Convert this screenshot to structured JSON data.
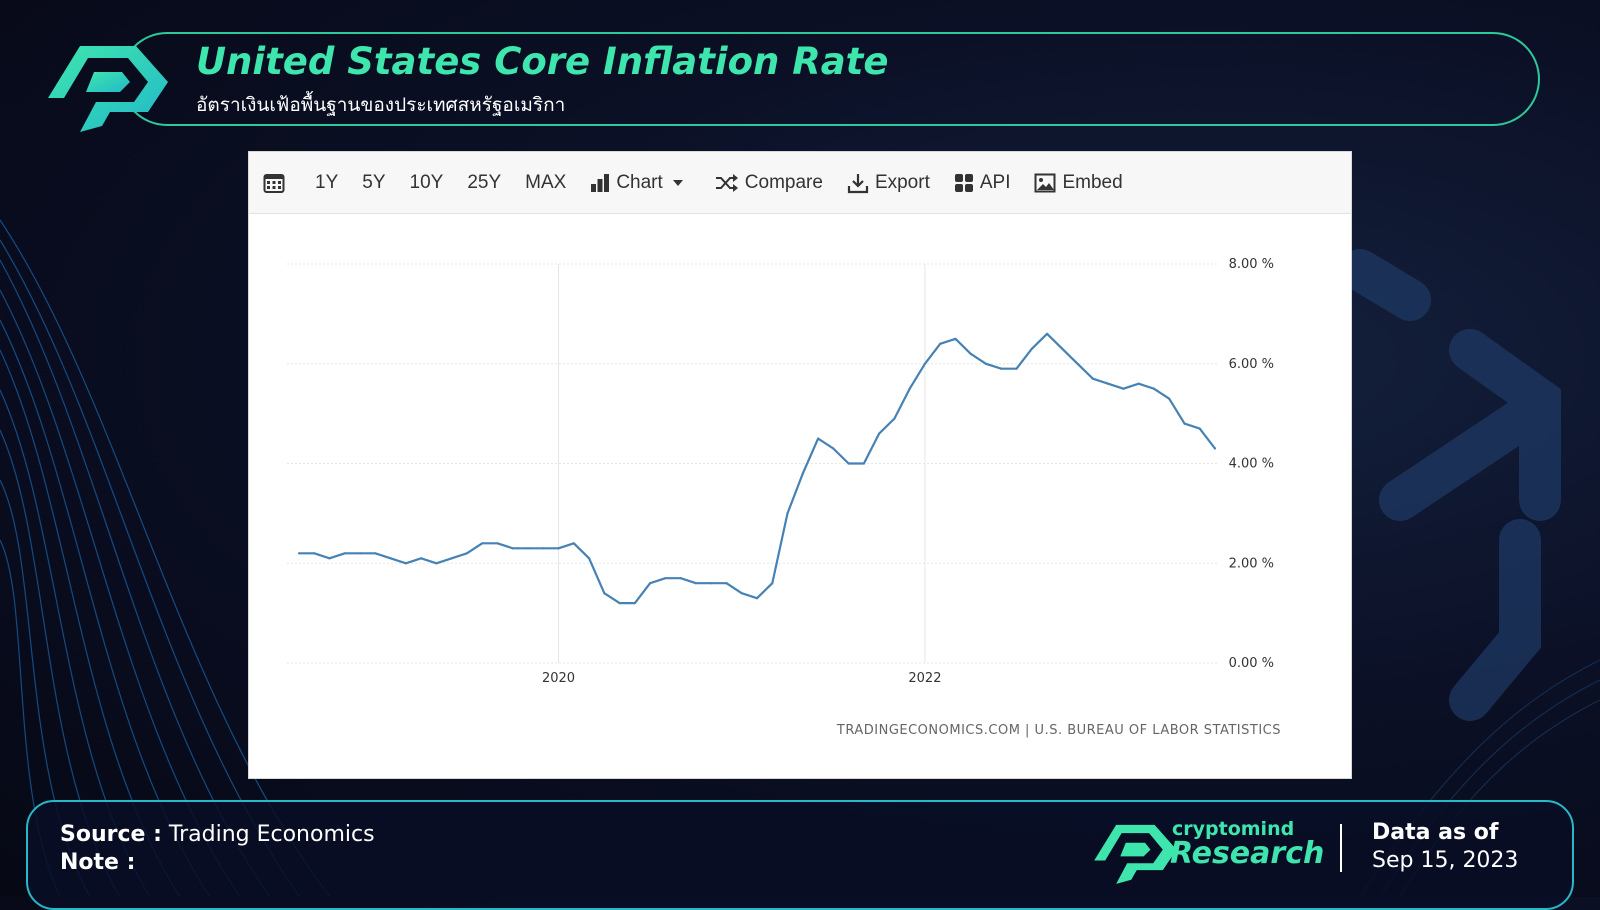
{
  "header": {
    "title": "United States Core Inflation Rate",
    "subtitle": "อัตราเงินเฟ้อพื้นฐานของประเทศสหรัฐอเมริกา"
  },
  "toolbar": {
    "calendar_icon": "calendar-icon",
    "ranges": [
      "1Y",
      "5Y",
      "10Y",
      "25Y",
      "MAX"
    ],
    "chart_label": "Chart",
    "compare_label": "Compare",
    "export_label": "Export",
    "api_label": "API",
    "embed_label": "Embed"
  },
  "chart_data": {
    "type": "line",
    "title": "United States Core Inflation Rate",
    "xlabel": "",
    "ylabel": "",
    "x_tick_labels": [
      "2020",
      "2022"
    ],
    "y_tick_labels": [
      "0.00 %",
      "2.00 %",
      "4.00 %",
      "6.00 %",
      "8.00 %"
    ],
    "ylim": [
      0,
      8
    ],
    "grid": true,
    "legend": "none",
    "series": [
      {
        "name": "Core Inflation Rate",
        "color": "#4682b4",
        "dates": [
          "2018-08",
          "2018-09",
          "2018-10",
          "2018-11",
          "2018-12",
          "2019-01",
          "2019-02",
          "2019-03",
          "2019-04",
          "2019-05",
          "2019-06",
          "2019-07",
          "2019-08",
          "2019-09",
          "2019-10",
          "2019-11",
          "2019-12",
          "2020-01",
          "2020-02",
          "2020-03",
          "2020-04",
          "2020-05",
          "2020-06",
          "2020-07",
          "2020-08",
          "2020-09",
          "2020-10",
          "2020-11",
          "2020-12",
          "2021-01",
          "2021-02",
          "2021-03",
          "2021-04",
          "2021-05",
          "2021-06",
          "2021-07",
          "2021-08",
          "2021-09",
          "2021-10",
          "2021-11",
          "2021-12",
          "2022-01",
          "2022-02",
          "2022-03",
          "2022-04",
          "2022-05",
          "2022-06",
          "2022-07",
          "2022-08",
          "2022-09",
          "2022-10",
          "2022-11",
          "2022-12",
          "2023-01",
          "2023-02",
          "2023-03",
          "2023-04",
          "2023-05",
          "2023-06",
          "2023-07",
          "2023-08"
        ],
        "values": [
          2.2,
          2.2,
          2.1,
          2.2,
          2.2,
          2.2,
          2.1,
          2.0,
          2.1,
          2.0,
          2.1,
          2.2,
          2.4,
          2.4,
          2.3,
          2.3,
          2.3,
          2.3,
          2.4,
          2.1,
          1.4,
          1.2,
          1.2,
          1.6,
          1.7,
          1.7,
          1.6,
          1.6,
          1.6,
          1.4,
          1.3,
          1.6,
          3.0,
          3.8,
          4.5,
          4.3,
          4.0,
          4.0,
          4.6,
          4.9,
          5.5,
          6.0,
          6.4,
          6.5,
          6.2,
          6.0,
          5.9,
          5.9,
          6.3,
          6.6,
          6.3,
          6.0,
          5.7,
          5.6,
          5.5,
          5.6,
          5.5,
          5.3,
          4.8,
          4.7,
          4.3
        ]
      }
    ]
  },
  "chart_source": "TRADINGECONOMICS.COM | U.S. BUREAU OF LABOR STATISTICS",
  "footer": {
    "source_label": "Source :",
    "source_value": "Trading Economics",
    "note_label": "Note :",
    "brand_small": "cryptomind",
    "brand_big": "Research",
    "as_of_label": "Data as of",
    "as_of_date": "Sep 15, 2023"
  },
  "colors": {
    "accent": "#3ee6ae",
    "line": "#4682b4",
    "footer_border": "#27b8c9"
  }
}
